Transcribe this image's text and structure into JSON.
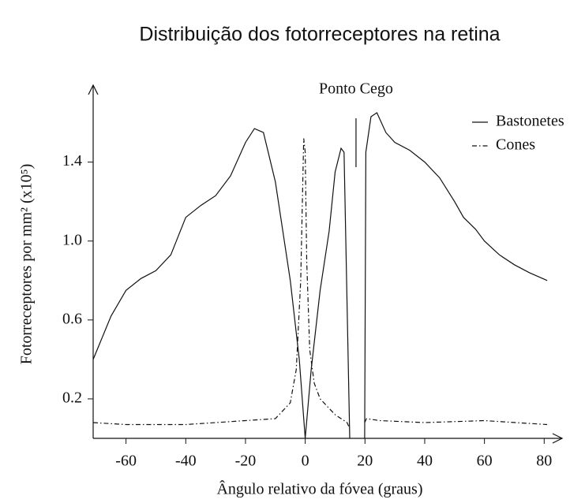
{
  "chart_data": {
    "type": "line",
    "title": "Distribuição dos fotorreceptores na retina",
    "x_label": "Ângulo relativo da fóvea (graus)",
    "y_label": "Fotorreceptores por mm² (x10⁵)",
    "annotation": {
      "text": "Ponto Cego",
      "x": 17
    },
    "xlim": [
      -71,
      86
    ],
    "ylim": [
      0,
      1.79
    ],
    "xticks": [
      -60,
      -40,
      -20,
      0,
      20,
      40,
      60,
      80
    ],
    "yticks": [
      0.2,
      0.6,
      {
        "value": 1,
        "label": "1.0"
      },
      1.4
    ],
    "legend": "upper right",
    "series": [
      {
        "name": "Bastonetes",
        "color": "#111111",
        "style": "solid",
        "x": [
          -71,
          -65,
          -60,
          -55,
          -50,
          -45,
          -40,
          -35,
          -30,
          -25,
          -20,
          -17,
          -14,
          -10,
          -5,
          -2,
          0,
          2,
          5,
          8,
          10,
          12,
          13,
          14.9,
          17,
          19.9,
          20.3,
          22,
          24,
          27,
          30,
          35,
          40,
          45,
          50,
          53,
          57,
          60,
          65,
          70,
          75,
          81
        ],
        "values": [
          0.4,
          0.62,
          0.75,
          0.81,
          0.85,
          0.93,
          1.12,
          1.18,
          1.23,
          1.33,
          1.5,
          1.57,
          1.55,
          1.3,
          0.8,
          0.4,
          0,
          0.35,
          0.75,
          1.05,
          1.35,
          1.47,
          1.45,
          0,
          null,
          0,
          1.45,
          1.63,
          1.65,
          1.55,
          1.5,
          1.46,
          1.4,
          1.32,
          1.2,
          1.12,
          1.06,
          1,
          0.93,
          0.88,
          0.84,
          0.8
        ]
      },
      {
        "name": "Cones",
        "color": "#111111",
        "style": "dashdot",
        "x": [
          -71,
          -60,
          -40,
          -20,
          -10,
          -5,
          -3,
          -1.5,
          -0.5,
          0,
          0.5,
          1.5,
          3,
          5,
          10,
          14,
          14.9,
          17,
          19.9,
          20.5,
          25,
          40,
          60,
          81
        ],
        "values": [
          0.08,
          0.07,
          0.07,
          0.09,
          0.1,
          0.18,
          0.35,
          0.8,
          1.52,
          1.45,
          0.9,
          0.45,
          0.28,
          0.2,
          0.12,
          0.08,
          0.05,
          null,
          0.08,
          0.1,
          0.09,
          0.08,
          0.09,
          0.07
        ]
      }
    ]
  }
}
